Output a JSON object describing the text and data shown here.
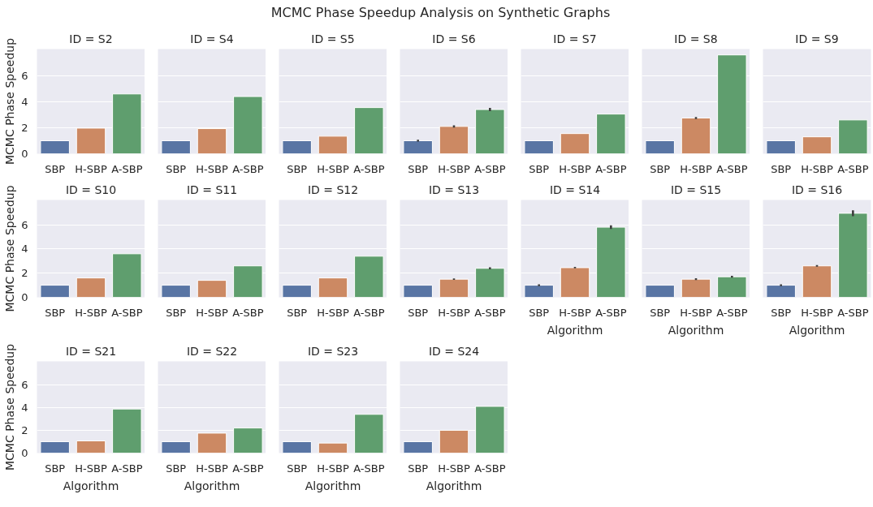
{
  "chart_data": [
    {
      "type": "bar",
      "title": "ID = S2",
      "annotations": [
        "MCMC Phase Speedup Analysis on Synthetic Graphs"
      ],
      "ylabel": "MCMC Phase Speedup",
      "categories": [
        "SBP",
        "H-SBP",
        "A-SBP"
      ],
      "colors": [
        "#5975a4",
        "#cc8963",
        "#5f9e6e"
      ],
      "values": [
        1,
        1.97,
        4.6
      ],
      "ylim": [
        0,
        8.05
      ],
      "yticks": [
        0,
        2,
        4,
        6
      ],
      "grid": "y"
    },
    {
      "type": "bar",
      "title": "ID = S4",
      "categories": [
        "SBP",
        "H-SBP",
        "A-SBP"
      ],
      "colors": [
        "#5975a4",
        "#cc8963",
        "#5f9e6e"
      ],
      "values": [
        1,
        1.93,
        4.4
      ],
      "ylim": [
        0,
        8.05
      ],
      "yticks": [
        0,
        2,
        4,
        6
      ],
      "grid": "y",
      "tick_labels": "x"
    },
    {
      "type": "bar",
      "title": "ID = S5",
      "categories": [
        "SBP",
        "H-SBP",
        "A-SBP"
      ],
      "colors": [
        "#5975a4",
        "#cc8963",
        "#5f9e6e"
      ],
      "values": [
        1,
        1.35,
        3.55
      ],
      "ylim": [
        0,
        8.05
      ],
      "yticks": [
        0,
        2,
        4,
        6
      ],
      "grid": "y",
      "tick_labels": "x"
    },
    {
      "type": "bar",
      "title": "ID = S6",
      "categories": [
        "SBP",
        "H-SBP",
        "A-SBP"
      ],
      "colors": [
        "#5975a4",
        "#cc8963",
        "#5f9e6e"
      ],
      "values": [
        1,
        2.1,
        3.4
      ],
      "errors": [
        0.07,
        0.08,
        0.12
      ],
      "ylim": [
        0,
        8.05
      ],
      "yticks": [
        0,
        2,
        4,
        6
      ],
      "grid": "y",
      "tick_labels": "x"
    },
    {
      "type": "bar",
      "title": "ID = S7",
      "categories": [
        "SBP",
        "H-SBP",
        "A-SBP"
      ],
      "colors": [
        "#5975a4",
        "#cc8963",
        "#5f9e6e"
      ],
      "values": [
        1,
        1.55,
        3.05
      ],
      "ylim": [
        0,
        8.05
      ],
      "yticks": [
        0,
        2,
        4,
        6
      ],
      "grid": "y",
      "tick_labels": "x"
    },
    {
      "type": "bar",
      "title": "ID = S8",
      "categories": [
        "SBP",
        "H-SBP",
        "A-SBP"
      ],
      "colors": [
        "#5975a4",
        "#cc8963",
        "#5f9e6e"
      ],
      "values": [
        1,
        2.75,
        7.6
      ],
      "errors": [
        null,
        0.08,
        null
      ],
      "ylim": [
        0,
        8.05
      ],
      "yticks": [
        0,
        2,
        4,
        6
      ],
      "grid": "y",
      "tick_labels": "x"
    },
    {
      "type": "bar",
      "title": "ID = S9",
      "categories": [
        "SBP",
        "H-SBP",
        "A-SBP"
      ],
      "colors": [
        "#5975a4",
        "#cc8963",
        "#5f9e6e"
      ],
      "values": [
        1,
        1.3,
        2.6
      ],
      "ylim": [
        0,
        8.05
      ],
      "yticks": [
        0,
        2,
        4,
        6
      ],
      "grid": "y",
      "tick_labels": "x"
    },
    {
      "type": "bar",
      "title": "ID = S10",
      "ylabel": "MCMC Phase Speedup",
      "categories": [
        "SBP",
        "H-SBP",
        "A-SBP"
      ],
      "colors": [
        "#5975a4",
        "#cc8963",
        "#5f9e6e"
      ],
      "values": [
        1,
        1.6,
        3.6
      ],
      "ylim": [
        0,
        8.05
      ],
      "yticks": [
        0,
        2,
        4,
        6
      ],
      "grid": "y"
    },
    {
      "type": "bar",
      "title": "ID = S11",
      "categories": [
        "SBP",
        "H-SBP",
        "A-SBP"
      ],
      "colors": [
        "#5975a4",
        "#cc8963",
        "#5f9e6e"
      ],
      "values": [
        1,
        1.4,
        2.6
      ],
      "ylim": [
        0,
        8.05
      ],
      "yticks": [
        0,
        2,
        4,
        6
      ],
      "grid": "y",
      "tick_labels": "x"
    },
    {
      "type": "bar",
      "title": "ID = S12",
      "categories": [
        "SBP",
        "H-SBP",
        "A-SBP"
      ],
      "colors": [
        "#5975a4",
        "#cc8963",
        "#5f9e6e"
      ],
      "values": [
        1,
        1.6,
        3.4
      ],
      "ylim": [
        0,
        8.05
      ],
      "yticks": [
        0,
        2,
        4,
        6
      ],
      "grid": "y",
      "tick_labels": "x"
    },
    {
      "type": "bar",
      "title": "ID = S13",
      "categories": [
        "SBP",
        "H-SBP",
        "A-SBP"
      ],
      "colors": [
        "#5975a4",
        "#cc8963",
        "#5f9e6e"
      ],
      "values": [
        1,
        1.5,
        2.4
      ],
      "errors": [
        null,
        0.06,
        0.08
      ],
      "ylim": [
        0,
        8.05
      ],
      "yticks": [
        0,
        2,
        4,
        6
      ],
      "grid": "y",
      "tick_labels": "x"
    },
    {
      "type": "bar",
      "title": "ID = S14",
      "xlabel": "Algorithm",
      "categories": [
        "SBP",
        "H-SBP",
        "A-SBP"
      ],
      "colors": [
        "#5975a4",
        "#cc8963",
        "#5f9e6e"
      ],
      "values": [
        1,
        2.45,
        5.8
      ],
      "errors": [
        0.07,
        0.06,
        0.15
      ],
      "ylim": [
        0,
        8.05
      ],
      "yticks": [
        0,
        2,
        4,
        6
      ],
      "grid": "y",
      "tick_labels": "x"
    },
    {
      "type": "bar",
      "title": "ID = S15",
      "xlabel": "Algorithm",
      "categories": [
        "SBP",
        "H-SBP",
        "A-SBP"
      ],
      "colors": [
        "#5975a4",
        "#cc8963",
        "#5f9e6e"
      ],
      "values": [
        1,
        1.5,
        1.7
      ],
      "errors": [
        null,
        0.07,
        0.08
      ],
      "ylim": [
        0,
        8.05
      ],
      "yticks": [
        0,
        2,
        4,
        6
      ],
      "grid": "y",
      "tick_labels": "x"
    },
    {
      "type": "bar",
      "title": "ID = S16",
      "xlabel": "Algorithm",
      "categories": [
        "SBP",
        "H-SBP",
        "A-SBP"
      ],
      "colors": [
        "#5975a4",
        "#cc8963",
        "#5f9e6e"
      ],
      "values": [
        1,
        2.6,
        6.95
      ],
      "errors": [
        0.07,
        0.07,
        0.25
      ],
      "ylim": [
        0,
        8.05
      ],
      "yticks": [
        0,
        2,
        4,
        6
      ],
      "grid": "y",
      "tick_labels": "x"
    },
    {
      "type": "bar",
      "title": "ID = S21",
      "xlabel": "Algorithm",
      "ylabel": "MCMC Phase Speedup",
      "categories": [
        "SBP",
        "H-SBP",
        "A-SBP"
      ],
      "colors": [
        "#5975a4",
        "#cc8963",
        "#5f9e6e"
      ],
      "values": [
        1,
        1.07,
        3.87
      ],
      "ylim": [
        0,
        8.05
      ],
      "yticks": [
        0,
        2,
        4,
        6
      ],
      "grid": "y"
    },
    {
      "type": "bar",
      "title": "ID = S22",
      "xlabel": "Algorithm",
      "categories": [
        "SBP",
        "H-SBP",
        "A-SBP"
      ],
      "colors": [
        "#5975a4",
        "#cc8963",
        "#5f9e6e"
      ],
      "values": [
        1,
        1.75,
        2.2
      ],
      "ylim": [
        0,
        8.05
      ],
      "yticks": [
        0,
        2,
        4,
        6
      ],
      "grid": "y",
      "tick_labels": "x"
    },
    {
      "type": "bar",
      "title": "ID = S23",
      "xlabel": "Algorithm",
      "categories": [
        "SBP",
        "H-SBP",
        "A-SBP"
      ],
      "colors": [
        "#5975a4",
        "#cc8963",
        "#5f9e6e"
      ],
      "values": [
        1,
        0.88,
        3.4
      ],
      "ylim": [
        0,
        8.05
      ],
      "yticks": [
        0,
        2,
        4,
        6
      ],
      "grid": "y",
      "tick_labels": "x"
    },
    {
      "type": "bar",
      "title": "ID = S24",
      "xlabel": "Algorithm",
      "categories": [
        "SBP",
        "H-SBP",
        "A-SBP"
      ],
      "colors": [
        "#5975a4",
        "#cc8963",
        "#5f9e6e"
      ],
      "values": [
        1,
        2.0,
        4.1
      ],
      "ylim": [
        0,
        8.05
      ],
      "yticks": [
        0,
        2,
        4,
        6
      ],
      "grid": "y",
      "tick_labels": "x"
    }
  ]
}
